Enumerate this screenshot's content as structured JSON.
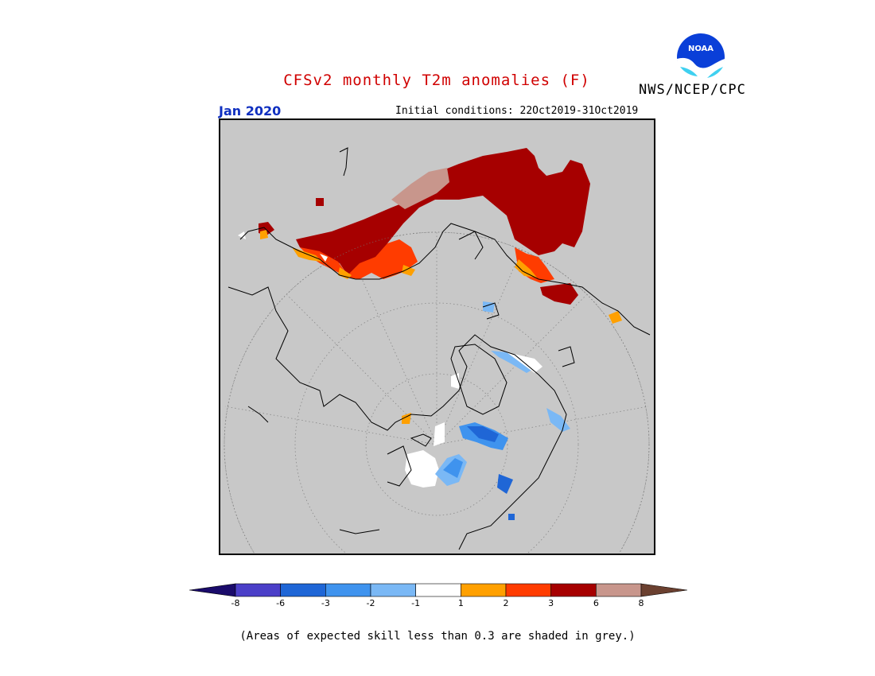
{
  "title": "CFSv2 monthly T2m anomalies (F)",
  "agency": "NWS/NCEP/CPC",
  "logo_text": "NOAA",
  "period": "Jan 2020",
  "initial_conditions": "Initial conditions: 22Oct2019-31Oct2019",
  "note": "(Areas of expected skill less than 0.3 are shaded in grey.)",
  "colors": {
    "background_grey": "#c8c8c8",
    "title_red": "#d00000",
    "period_blue": "#1030c0"
  },
  "colorbar": {
    "labels": [
      "-8",
      "-6",
      "-3",
      "-2",
      "-1",
      "1",
      "2",
      "3",
      "6",
      "8"
    ],
    "bins": [
      {
        "color": "#1a0b6b",
        "range": "< -8"
      },
      {
        "color": "#4b3fc8",
        "range": "-8 to -6"
      },
      {
        "color": "#1f66d6",
        "range": "-6 to -3"
      },
      {
        "color": "#3f93ee",
        "range": "-3 to -2"
      },
      {
        "color": "#7ab8f5",
        "range": "-2 to -1"
      },
      {
        "color": "#ffffff",
        "range": "-1 to 1"
      },
      {
        "color": "#ffa000",
        "range": "1 to 2"
      },
      {
        "color": "#ff3c00",
        "range": "2 to 3"
      },
      {
        "color": "#a60000",
        "range": "3 to 6"
      },
      {
        "color": "#c8968c",
        "range": "6 to 8"
      },
      {
        "color": "#6b4030",
        "range": "> 8"
      }
    ]
  }
}
